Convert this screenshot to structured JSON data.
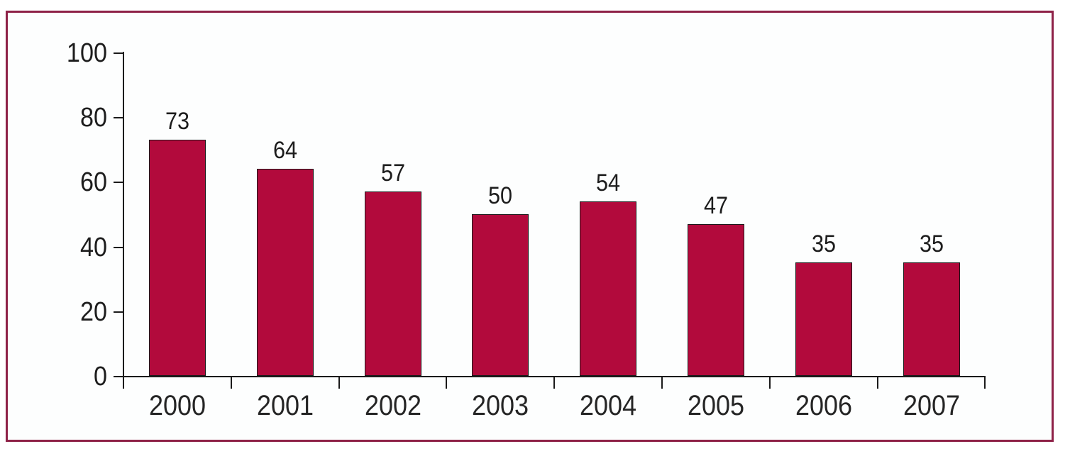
{
  "chart_data": {
    "type": "bar",
    "title": "",
    "xlabel": "",
    "ylabel": "",
    "categories": [
      "2000",
      "2001",
      "2002",
      "2003",
      "2004",
      "2005",
      "2006",
      "2007"
    ],
    "values": [
      73,
      64,
      57,
      50,
      54,
      47,
      35,
      35
    ],
    "value_labels": [
      "73",
      "64",
      "57",
      "50",
      "54",
      "47",
      "35",
      "35"
    ],
    "ylim": [
      0,
      100
    ],
    "yticks": [
      0,
      20,
      40,
      60,
      80,
      100
    ],
    "grid": false,
    "legend": false,
    "colors": {
      "bar_fill": "#B20A3C",
      "bar_outline": "#1a1a1a",
      "axis": "#1a1a1a",
      "label_text": "#1d1d1d",
      "frame_border": "#8E2147",
      "background": "#ffffff"
    }
  }
}
